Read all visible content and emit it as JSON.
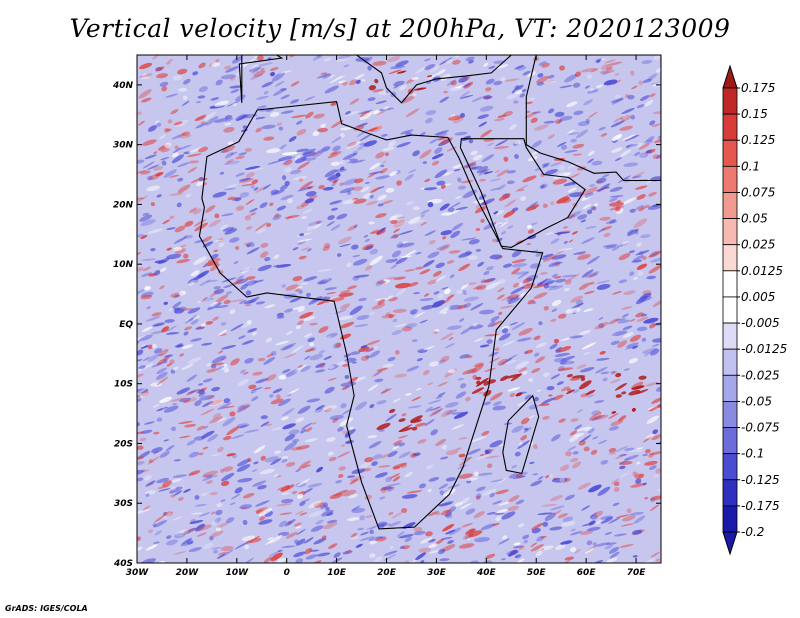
{
  "title": "Vertical velocity [m/s] at 200hPa, VT: 2020123009",
  "credit": "GrADS: IGES/COLA",
  "map": {
    "lat_ticks": [
      "40N",
      "30N",
      "20N",
      "10N",
      "EQ",
      "10S",
      "20S",
      "30S",
      "40S"
    ],
    "lon_ticks": [
      "30W",
      "20W",
      "10W",
      "0",
      "10E",
      "20E",
      "30E",
      "40E",
      "50E",
      "60E",
      "70E"
    ],
    "field_colors": {
      "ascent": "#e0403c",
      "descent": "#4848d8",
      "neutral": "#ffffff",
      "background": "#c6c6ee",
      "coast": "#000000"
    }
  },
  "colorbar": {
    "labels": [
      "0.175",
      "0.15",
      "0.125",
      "0.1",
      "0.075",
      "0.05",
      "0.025",
      "0.0125",
      "0.005",
      "-0.005",
      "-0.0125",
      "-0.025",
      "-0.05",
      "-0.075",
      "-0.1",
      "-0.125",
      "-0.175",
      "-0.2"
    ],
    "colors": [
      "#a01818",
      "#c02828",
      "#d83c38",
      "#e45850",
      "#ec7a70",
      "#f29a90",
      "#f6bab2",
      "#fad8d4",
      "#ffffff",
      "#ffffff",
      "#dcdcf6",
      "#c2c2f0",
      "#a6a6ea",
      "#8a8ae2",
      "#6c6cda",
      "#4c4cd0",
      "#3030c0",
      "#1a1aa8"
    ]
  }
}
